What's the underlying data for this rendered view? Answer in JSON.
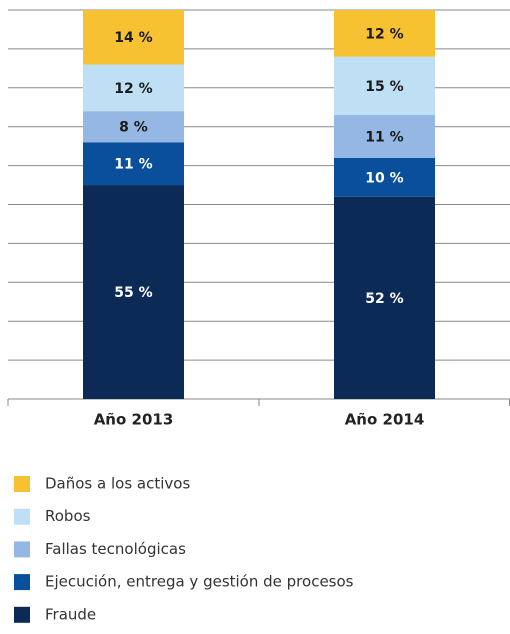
{
  "chart_data": {
    "type": "stacked_bar",
    "categories": [
      "Año 2013",
      "Año 2014"
    ],
    "series": [
      {
        "name": "Daños a los activos",
        "color": "#f6c232",
        "values": [
          14,
          12
        ],
        "value_labels": [
          "14 %",
          "12 %"
        ]
      },
      {
        "name": "Robos",
        "color": "#bfdff5",
        "values": [
          12,
          15
        ],
        "value_labels": [
          "12 %",
          "15 %"
        ]
      },
      {
        "name": "Fallas tecnológicas",
        "color": "#94b8e3",
        "values": [
          8,
          11
        ],
        "value_labels": [
          "8 %",
          "11 %"
        ]
      },
      {
        "name": "Ejecución, entrega y gestión de procesos",
        "color": "#0a4f9c",
        "values": [
          11,
          10
        ],
        "value_labels": [
          "11 %",
          "10 %"
        ]
      },
      {
        "name": "Fraude",
        "color": "#0b2a55",
        "values": [
          55,
          52
        ],
        "value_labels": [
          "55 %",
          "52 %"
        ]
      }
    ],
    "ylim": [
      0,
      100
    ],
    "yticks": [
      0,
      10,
      20,
      30,
      40,
      50,
      60,
      70,
      80,
      90,
      100
    ],
    "grid": true
  }
}
